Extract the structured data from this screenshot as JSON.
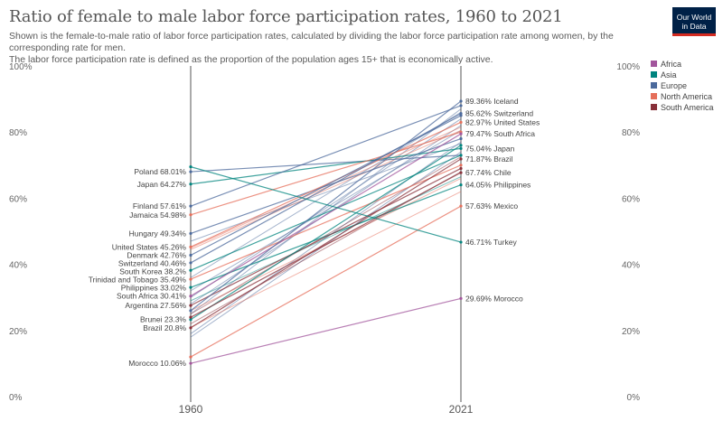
{
  "title": "Ratio of female to male labor force participation rates, 1960 to 2021",
  "subtitle_line1": "Shown is the female-to-male ratio of labor force participation rates, calculated by dividing the labor force participation rate among women, by the corresponding rate for men.",
  "subtitle_line2": "The labor force participation rate is defined as the proportion of the population ages 15+ that is economically active.",
  "logo": {
    "line1": "Our World",
    "line2": "in Data",
    "bg": "#002147",
    "accent": "#d42b21"
  },
  "chart_data": {
    "type": "line",
    "chart_style": "slope",
    "x": [
      "1960",
      "2021"
    ],
    "ylim": [
      0,
      100
    ],
    "y_ticks": [
      "0%",
      "20%",
      "40%",
      "60%",
      "80%",
      "100%"
    ],
    "y_tick_values": [
      0,
      20,
      40,
      60,
      80,
      100
    ],
    "legend": [
      {
        "name": "Africa",
        "color": "#a2559c"
      },
      {
        "name": "Asia",
        "color": "#00847e"
      },
      {
        "name": "Europe",
        "color": "#4c6a9c"
      },
      {
        "name": "North America",
        "color": "#e56e5a"
      },
      {
        "name": "South America",
        "color": "#883039"
      }
    ],
    "labeled_series": [
      {
        "name": "Poland",
        "region": "Europe",
        "start": 68.01,
        "end": 73.0,
        "start_label": "Poland 68.01%"
      },
      {
        "name": "Japan",
        "region": "Asia",
        "start": 64.27,
        "end": 75.04,
        "start_label": "Japan 64.27%",
        "end_label": "75.04% Japan"
      },
      {
        "name": "Finland",
        "region": "Europe",
        "start": 57.61,
        "end": 88.0,
        "start_label": "Finland 57.61%"
      },
      {
        "name": "Jamaica",
        "region": "North America",
        "start": 54.98,
        "end": 80.0,
        "start_label": "Jamaica 54.98%"
      },
      {
        "name": "Hungary",
        "region": "Europe",
        "start": 49.34,
        "end": 78.0,
        "start_label": "Hungary 49.34%"
      },
      {
        "name": "United States",
        "region": "North America",
        "start": 45.26,
        "end": 82.97,
        "start_label": "United States 45.26%",
        "end_label": "82.97% United States"
      },
      {
        "name": "Denmark",
        "region": "Europe",
        "start": 42.76,
        "end": 85.0,
        "start_label": "Denmark 42.76%"
      },
      {
        "name": "Switzerland",
        "region": "Europe",
        "start": 40.46,
        "end": 85.62,
        "start_label": "Switzerland 40.46%",
        "end_label": "85.62% Switzerland"
      },
      {
        "name": "South Korea",
        "region": "Asia",
        "start": 38.2,
        "end": 73.0,
        "start_label": "South Korea 38.2%"
      },
      {
        "name": "Trinidad and Tobago",
        "region": "North America",
        "start": 35.49,
        "end": 70.0,
        "start_label": "Trinidad and Tobago 35.49%"
      },
      {
        "name": "Philippines",
        "region": "Asia",
        "start": 33.02,
        "end": 64.05,
        "start_label": "Philippines 33.02%",
        "end_label": "64.05% Philippines"
      },
      {
        "name": "South Africa",
        "region": "Africa",
        "start": 30.41,
        "end": 79.47,
        "start_label": "South Africa 30.41%",
        "end_label": "79.47% South Africa"
      },
      {
        "name": "Argentina",
        "region": "South America",
        "start": 27.56,
        "end": 69.0,
        "start_label": "Argentina 27.56%"
      },
      {
        "name": "Brunei",
        "region": "Asia",
        "start": 23.3,
        "end": 76.0,
        "start_label": "Brunei 23.3%"
      },
      {
        "name": "Brazil",
        "region": "South America",
        "start": 20.8,
        "end": 71.87,
        "start_label": "Brazil 20.8%",
        "end_label": "71.87% Brazil"
      },
      {
        "name": "Morocco",
        "region": "Africa",
        "start": 10.06,
        "end": 29.69,
        "start_label": "Morocco 10.06%",
        "end_label": "29.69% Morocco"
      },
      {
        "name": "Iceland",
        "region": "Europe",
        "start": 26.0,
        "end": 89.36,
        "end_label": "89.36% Iceland"
      },
      {
        "name": "Chile",
        "region": "South America",
        "start": 24.0,
        "end": 67.74,
        "end_label": "67.74% Chile"
      },
      {
        "name": "Mexico",
        "region": "North America",
        "start": 12.0,
        "end": 57.63,
        "end_label": "57.63% Mexico"
      },
      {
        "name": "Turkey",
        "region": "Asia",
        "start": 69.5,
        "end": 46.71,
        "end_label": "46.71% Turkey"
      }
    ],
    "unlabeled_series": [
      {
        "region": "Europe",
        "start": 36.0,
        "end": 86.0
      },
      {
        "region": "Europe",
        "start": 30.0,
        "end": 84.0
      },
      {
        "region": "Europe",
        "start": 28.0,
        "end": 82.0
      },
      {
        "region": "Europe",
        "start": 32.0,
        "end": 80.5
      },
      {
        "region": "Europe",
        "start": 19.0,
        "end": 77.0
      },
      {
        "region": "Europe",
        "start": 18.0,
        "end": 74.0
      },
      {
        "region": "Europe",
        "start": 25.0,
        "end": 87.0
      },
      {
        "region": "Europe",
        "start": 47.0,
        "end": 76.5
      },
      {
        "region": "North America",
        "start": 45.0,
        "end": 81.5
      },
      {
        "region": "North America",
        "start": 44.5,
        "end": 80.5
      },
      {
        "region": "North America",
        "start": 26.0,
        "end": 66.0
      },
      {
        "region": "North America",
        "start": 21.0,
        "end": 62.0
      },
      {
        "region": "South America",
        "start": 22.0,
        "end": 68.0
      },
      {
        "region": "South America",
        "start": 25.0,
        "end": 72.5
      },
      {
        "region": "Asia",
        "start": 29.0,
        "end": 66.5
      }
    ]
  }
}
